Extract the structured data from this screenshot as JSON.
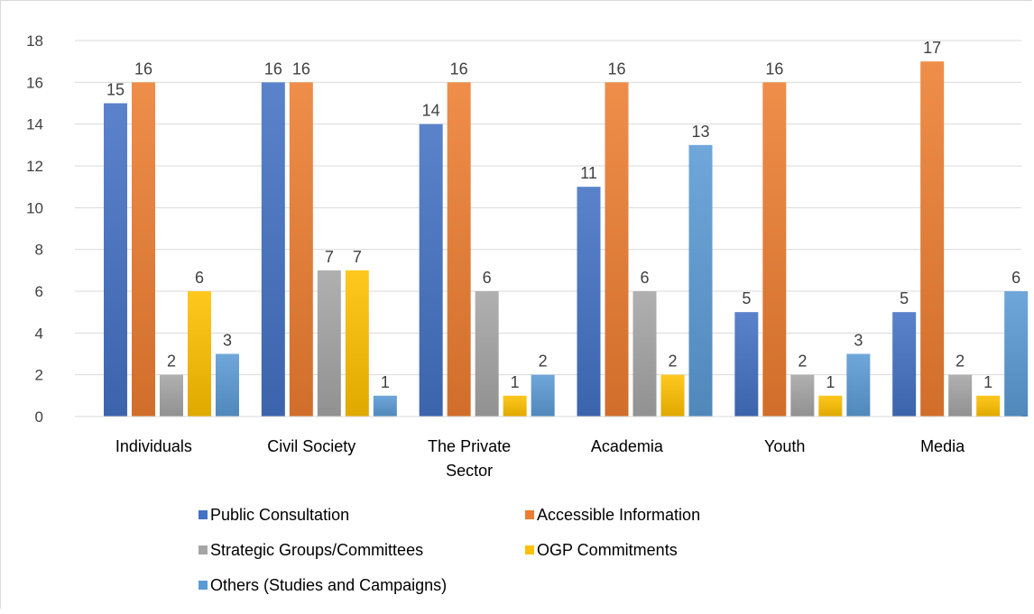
{
  "chart_data": {
    "type": "bar",
    "categories": [
      "Individuals",
      "Civil Society",
      "The Private Sector",
      "Academia",
      "Youth",
      "Media"
    ],
    "category_lines": [
      [
        "Individuals"
      ],
      [
        "Civil Society"
      ],
      [
        "The Private",
        "Sector"
      ],
      [
        "Academia"
      ],
      [
        "Youth"
      ],
      [
        "Media"
      ]
    ],
    "series": [
      {
        "name": "Public Consultation",
        "values": [
          15,
          16,
          14,
          11,
          5,
          5
        ],
        "color": "#4472C4"
      },
      {
        "name": "Accessible Information",
        "values": [
          16,
          16,
          16,
          16,
          16,
          17
        ],
        "color": "#ED7D31"
      },
      {
        "name": "Strategic Groups/Committees",
        "values": [
          2,
          7,
          6,
          6,
          2,
          2
        ],
        "color": "#A5A5A5"
      },
      {
        "name": "OGP Commitments",
        "values": [
          6,
          7,
          1,
          2,
          1,
          1
        ],
        "color": "#FFC000"
      },
      {
        "name": "Others (Studies and Campaigns)",
        "values": [
          3,
          1,
          2,
          13,
          3,
          6
        ],
        "color": "#5B9BD5"
      }
    ],
    "ylim": [
      0,
      18
    ],
    "yticks": [
      0,
      2,
      4,
      6,
      8,
      10,
      12,
      14,
      16,
      18
    ],
    "grid": true,
    "legend": "bottom",
    "title": "",
    "xlabel": "",
    "ylabel": ""
  }
}
